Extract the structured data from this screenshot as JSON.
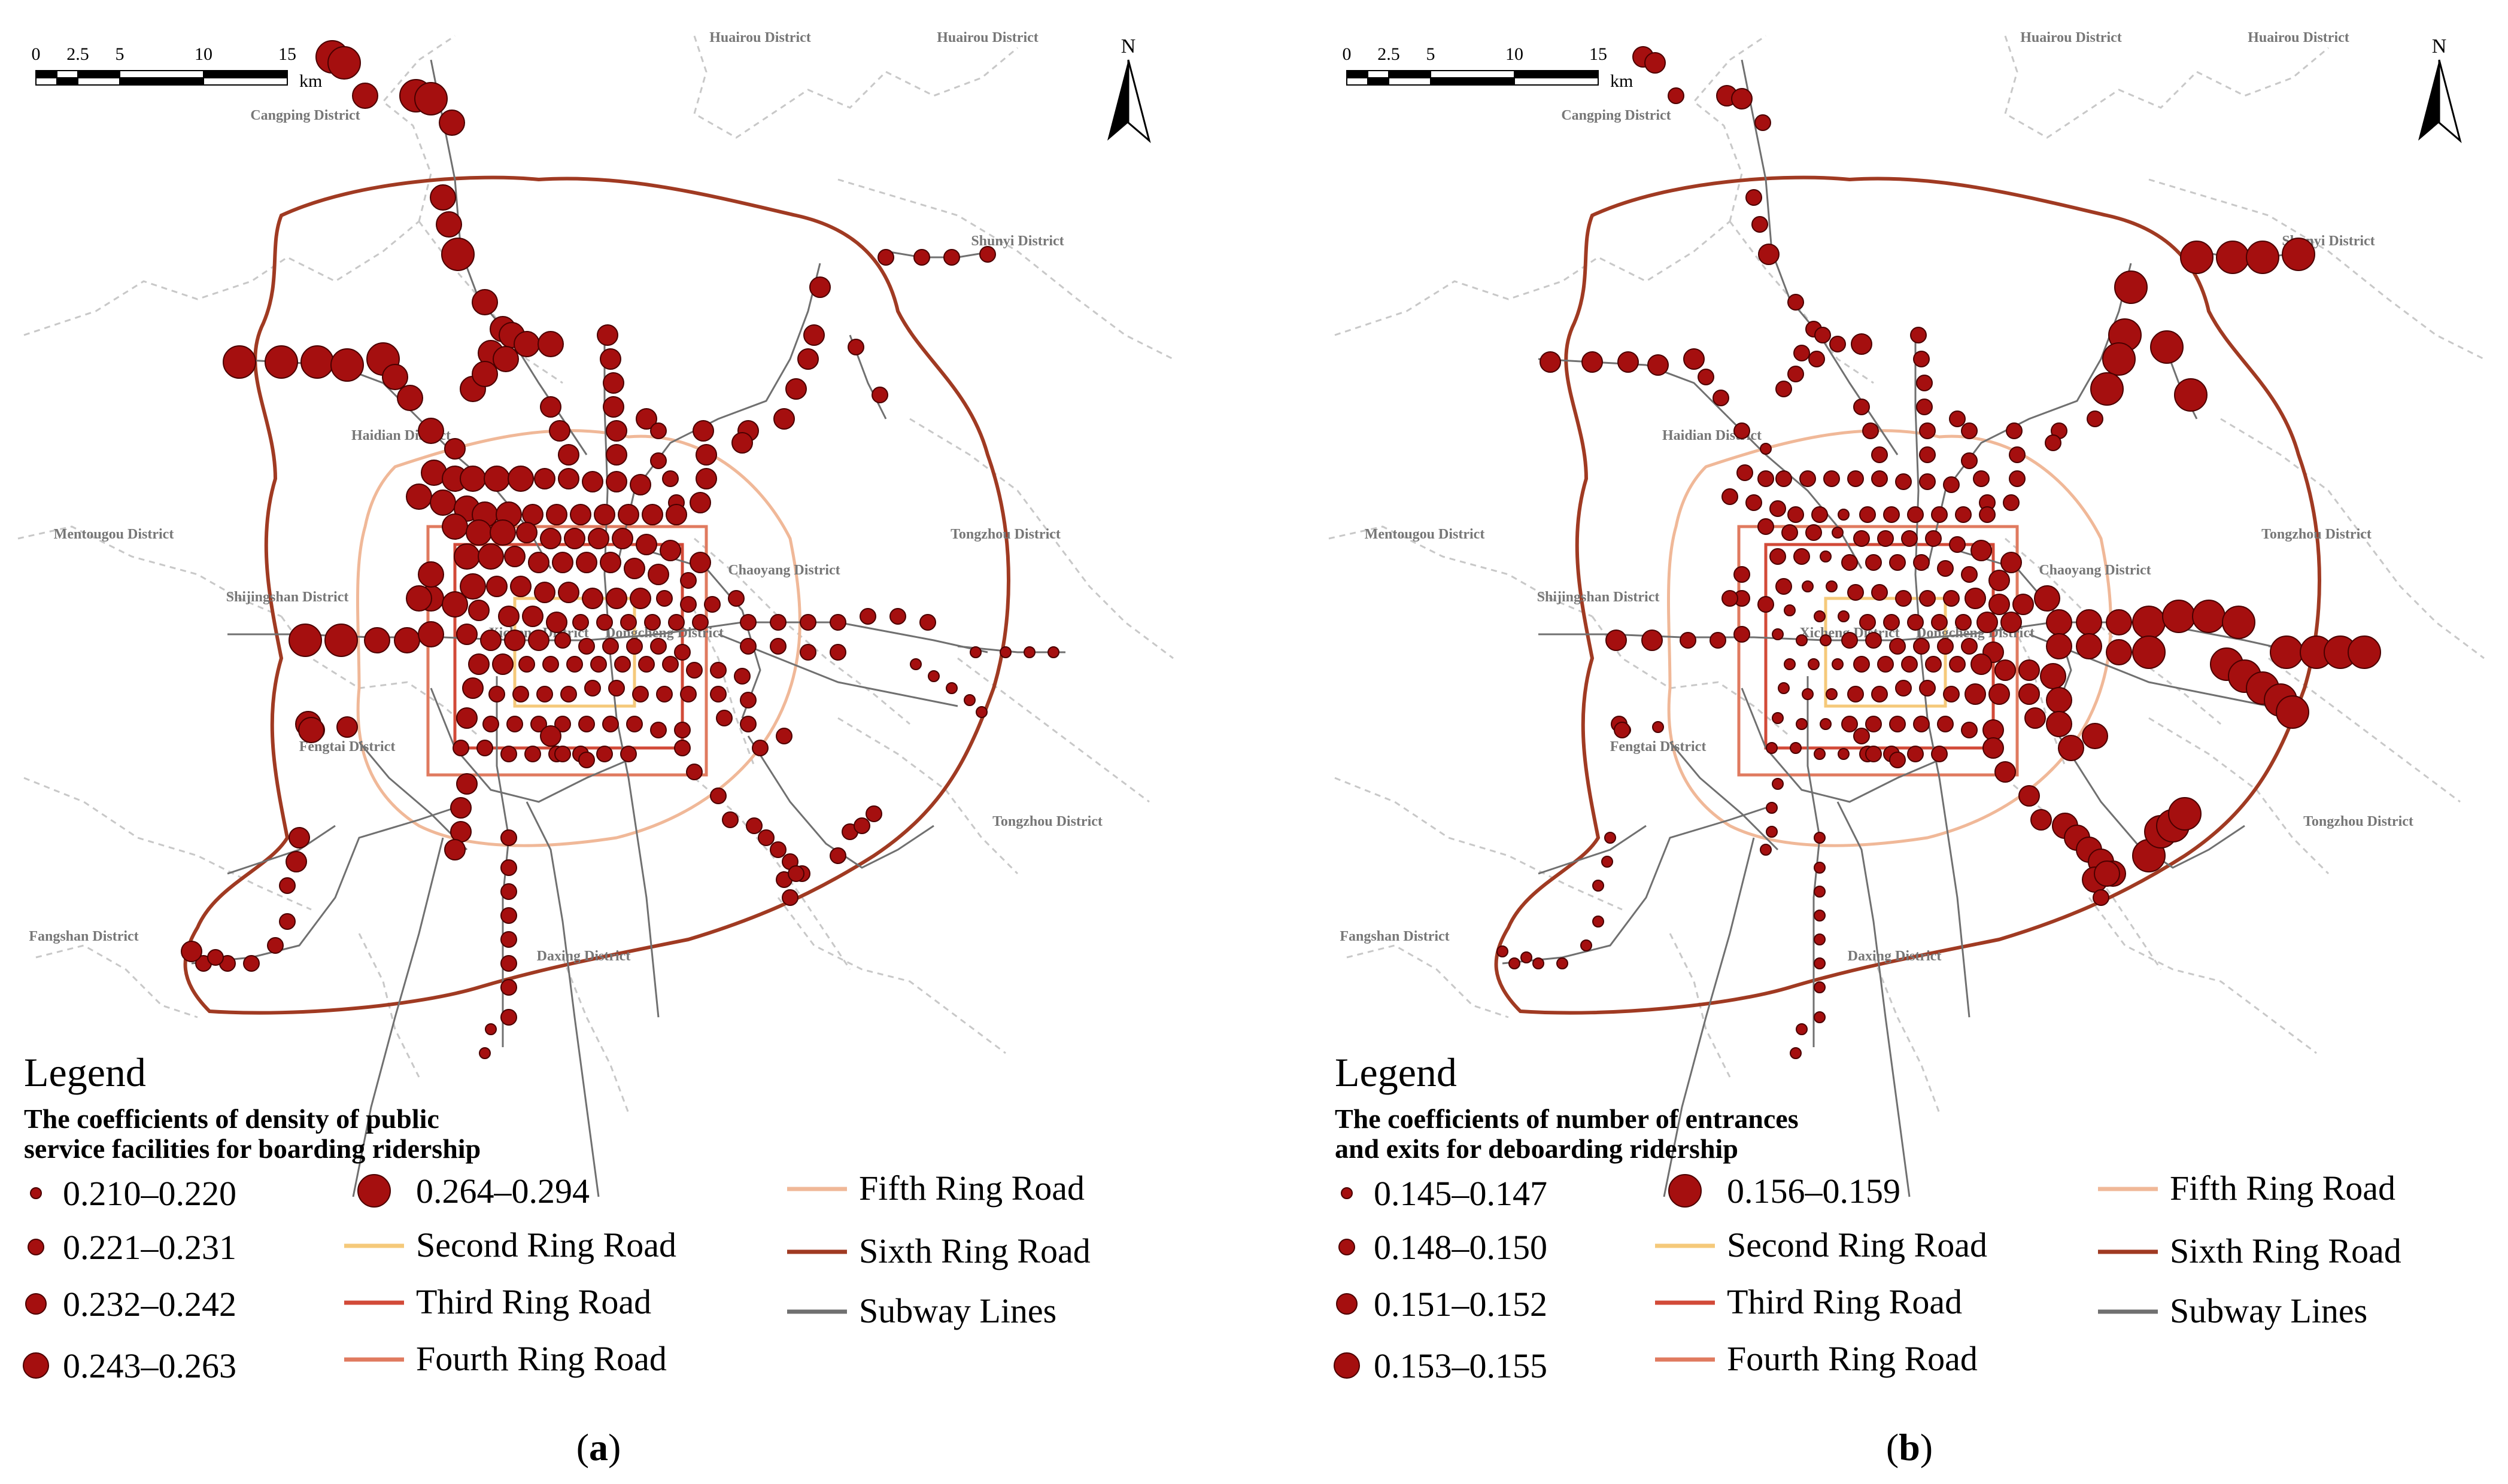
{
  "panels": [
    {
      "id": "a",
      "caption_open": "(",
      "caption_letter": "a",
      "caption_close": ")",
      "legend_title": "Legend",
      "legend_subtitle_line1": "The coefficients of density of public",
      "legend_subtitle_line2": "service facilities for boarding ridership",
      "classes": [
        "0.210–0.220",
        "0.221–0.231",
        "0.232–0.242",
        "0.243–0.263",
        "0.264–0.294"
      ],
      "large_on_east": false
    },
    {
      "id": "b",
      "caption_open": "(",
      "caption_letter": "b",
      "caption_close": ")",
      "legend_title": "Legend",
      "legend_subtitle_line1": "The coefficients of number of entrances",
      "legend_subtitle_line2": "and exits for deboarding ridership",
      "classes": [
        "0.145–0.147",
        "0.148–0.150",
        "0.151–0.152",
        "0.153–0.155",
        "0.156–0.159"
      ],
      "large_on_east": true
    }
  ],
  "line_legend": {
    "second": "Second Ring Road",
    "third": "Third Ring Road",
    "fourth": "Fourth Ring Road",
    "fifth": "Fifth Ring Road",
    "sixth": "Sixth Ring Road",
    "subway": "Subway Lines"
  },
  "scale_bar": {
    "ticks": [
      "0",
      "2.5",
      "5",
      "10",
      "15"
    ],
    "unit": "km"
  },
  "north_label": "N",
  "districts": {
    "huairou1": "Huairou District",
    "huairou2": "Huairou District",
    "cangping": "Cangping District",
    "shunyi": "Shunyi District",
    "haidian": "Haidian District",
    "mentougou": "Mentougou District",
    "tongzhou1": "Tongzhou District",
    "chaoyang": "Chaoyang District",
    "shijingshan": "Shijingshan District",
    "xicheng": "Xicheng District",
    "dongcheng": "Dongcheng District",
    "fengtai": "Fengtai District",
    "tongzhou2": "Tongzhou District",
    "fangshan": "Fangshan District",
    "daxing": "Daxing District"
  },
  "colors": {
    "station_fill": "#a50f0f",
    "station_stroke": "#4a0000",
    "second_ring": "#f5c97a",
    "third_ring": "#d24a38",
    "fourth_ring": "#e07a5f",
    "fifth_ring": "#f0b898",
    "sixth_ring": "#a03a22",
    "subway": "#707070",
    "boundary": "#c8c8c8"
  }
}
